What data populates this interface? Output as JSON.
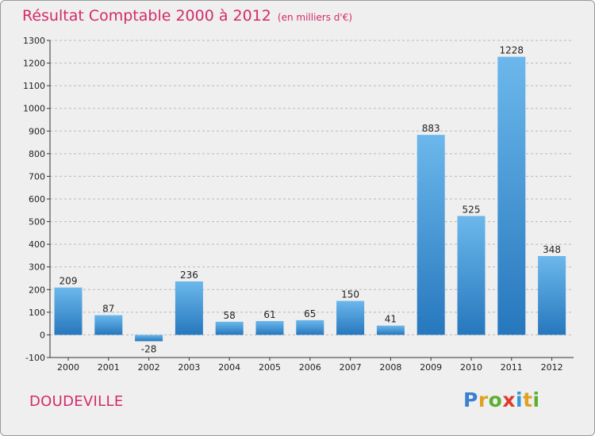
{
  "header": {
    "title": "Résultat Comptable 2000 à 2012",
    "subtitle": "(en milliers d'€)"
  },
  "footer": {
    "commune": "DOUDEVILLE",
    "logo_letters": [
      "P",
      "r",
      "o",
      "x",
      "i",
      "t",
      "i"
    ],
    "logo_colors": [
      "#3a7fd0",
      "#e0a020",
      "#5bb030",
      "#e03a30",
      "#2e9ad8",
      "#e0a020",
      "#5bb030"
    ]
  },
  "colors": {
    "bar": "#3d97dc",
    "bar_light": "#6cb8ec",
    "bar_dark": "#2677bd",
    "grid": "#b9b9b9",
    "axis": "#333333",
    "text": "#222222",
    "accent": "#d42a6a"
  },
  "chart_data": {
    "type": "bar",
    "categories": [
      "2000",
      "2001",
      "2002",
      "2003",
      "2004",
      "2005",
      "2006",
      "2007",
      "2008",
      "2009",
      "2010",
      "2011",
      "2012"
    ],
    "values": [
      209,
      87,
      -28,
      236,
      58,
      61,
      65,
      150,
      41,
      883,
      525,
      1228,
      348
    ],
    "title": "Résultat Comptable 2000 à 2012",
    "ylim": [
      -100,
      1300
    ],
    "yticks": [
      -100,
      0,
      100,
      200,
      300,
      400,
      500,
      600,
      700,
      800,
      900,
      1000,
      1100,
      1200,
      1300
    ],
    "grid": true,
    "legend": "none"
  }
}
